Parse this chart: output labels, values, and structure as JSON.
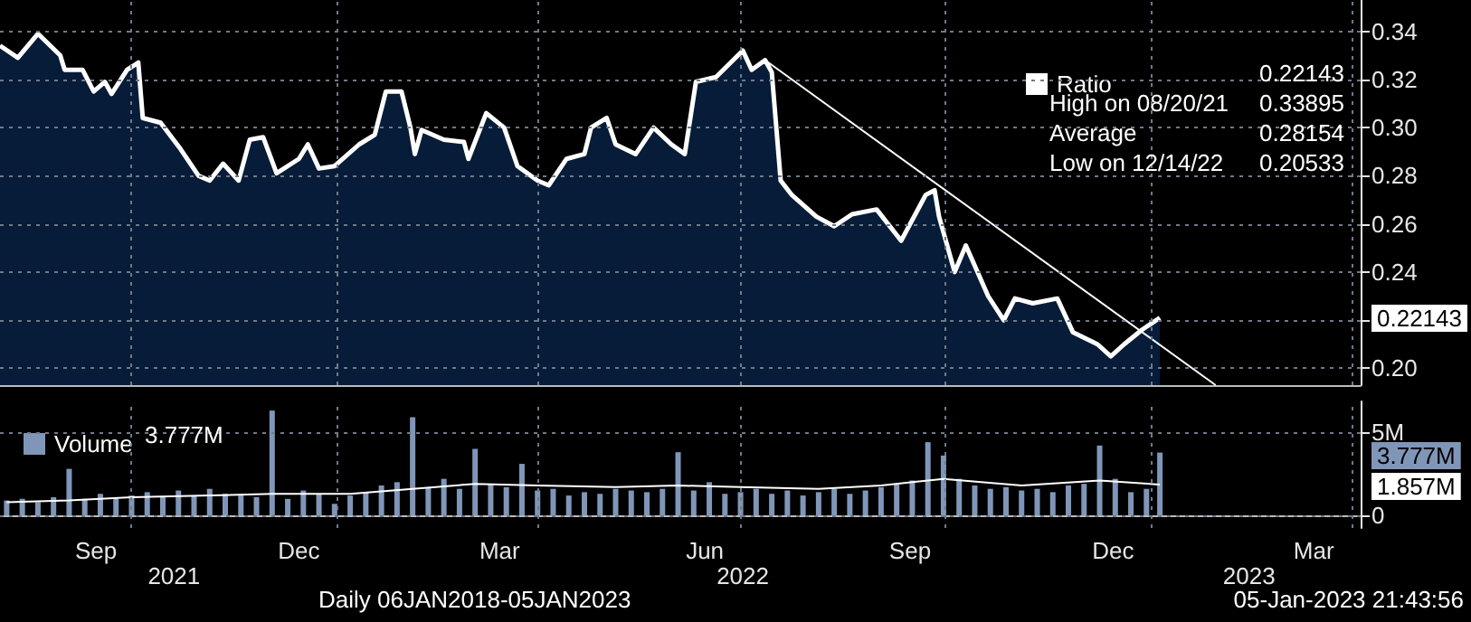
{
  "chart_data": [
    {
      "type": "area",
      "tick_labels": "y",
      "grid": true,
      "legend": "top right",
      "xlim": [
        "2021-08-03",
        "2023-04-05"
      ],
      "xticks": [
        {
          "value": "2021-10-01",
          "label": null
        },
        {
          "value": "2022-01-01",
          "label": null
        },
        {
          "value": "2022-04-01",
          "label": null
        },
        {
          "value": "2022-07-01",
          "label": null
        },
        {
          "value": "2022-10-01",
          "label": null
        },
        {
          "value": "2023-01-01",
          "label": null
        },
        {
          "value": "2023-04-01",
          "label": null
        }
      ],
      "ylim": [
        0.193,
        0.353
      ],
      "yticks": [
        {
          "value": 0.2,
          "label": "0.20"
        },
        {
          "value": 0.22,
          "label": null
        },
        0.24,
        0.26,
        0.28,
        {
          "value": 0.3,
          "label": "0.30"
        },
        0.32,
        0.34
      ],
      "series": [
        {
          "name": "Ratio",
          "color": "#ffffff",
          "x": [
            "2021-08-03",
            "2021-08-11",
            "2021-08-20",
            "2021-08-30",
            "2021-09-01",
            "2021-09-09",
            "2021-09-14",
            "2021-09-19",
            "2021-09-22",
            "2021-09-29",
            "2021-10-04",
            "2021-10-06",
            "2021-10-14",
            "2021-10-23",
            "2021-10-31",
            "2021-11-05",
            "2021-11-11",
            "2021-11-18",
            "2021-11-23",
            "2021-11-29",
            "2021-12-05",
            "2021-12-15",
            "2021-12-19",
            "2021-12-24",
            "2021-12-31",
            "2022-01-11",
            "2022-01-18",
            "2022-01-23",
            "2022-01-30",
            "2022-02-03",
            "2022-02-05",
            "2022-02-08",
            "2022-02-18",
            "2022-02-27",
            "2022-03-01",
            "2022-03-09",
            "2022-03-17",
            "2022-03-23",
            "2022-04-01",
            "2022-04-06",
            "2022-04-14",
            "2022-04-22",
            "2022-04-25",
            "2022-05-02",
            "2022-05-06",
            "2022-05-15",
            "2022-05-23",
            "2022-05-31",
            "2022-06-06",
            "2022-06-11",
            "2022-06-20",
            "2022-07-02",
            "2022-07-06",
            "2022-07-12",
            "2022-07-15",
            "2022-07-19",
            "2022-07-24",
            "2022-08-04",
            "2022-08-12",
            "2022-08-20",
            "2022-08-31",
            "2022-09-11",
            "2022-09-22",
            "2022-09-26",
            "2022-09-28",
            "2022-10-05",
            "2022-10-10",
            "2022-10-20",
            "2022-10-27",
            "2022-11-01",
            "2022-11-09",
            "2022-11-20",
            "2022-11-27",
            "2022-12-08",
            "2022-12-14",
            "2022-12-20",
            "2022-12-28",
            "2023-01-05"
          ],
          "values": [
            0.334,
            0.329,
            0.339,
            0.33,
            0.324,
            0.324,
            0.315,
            0.319,
            0.314,
            0.324,
            0.327,
            0.304,
            0.302,
            0.291,
            0.28,
            0.278,
            0.285,
            0.278,
            0.295,
            0.296,
            0.281,
            0.287,
            0.293,
            0.283,
            0.284,
            0.293,
            0.297,
            0.315,
            0.315,
            0.3,
            0.289,
            0.299,
            0.295,
            0.294,
            0.287,
            0.306,
            0.3,
            0.284,
            0.278,
            0.276,
            0.287,
            0.289,
            0.3,
            0.304,
            0.293,
            0.289,
            0.3,
            0.293,
            0.289,
            0.319,
            0.321,
            0.332,
            0.324,
            0.328,
            0.323,
            0.278,
            0.272,
            0.263,
            0.259,
            0.264,
            0.266,
            0.253,
            0.272,
            0.274,
            0.263,
            0.24,
            0.251,
            0.23,
            0.22,
            0.229,
            0.227,
            0.229,
            0.215,
            0.21,
            0.205,
            0.21,
            0.216,
            0.221
          ]
        },
        {
          "type": "line",
          "color": "#ffffff",
          "x": [
            "2022-07-12",
            "2023-01-30"
          ],
          "values": [
            0.328,
            0.193
          ]
        }
      ],
      "annotations": [
        "0.22143",
        "High on 08/20/21",
        "0.33895",
        "Average",
        "0.28154",
        "Low on 12/14/22",
        "0.20533",
        "0.22143"
      ]
    },
    {
      "type": "bar",
      "grid": true,
      "legend": "top left",
      "xlim": [
        "2021-08-03",
        "2023-04-05"
      ],
      "xticks": [
        {
          "value": "2021-09-15",
          "label": "Sep"
        },
        {
          "value": "2021-10-01",
          "label": null
        },
        {
          "value": "2021-12-15",
          "label": "Dec"
        },
        {
          "value": "2022-01-01",
          "label": null
        },
        {
          "value": "2022-03-15",
          "label": "Mar"
        },
        {
          "value": "2022-04-01",
          "label": null
        },
        {
          "value": "2022-06-15",
          "label": "Jun"
        },
        {
          "value": "2022-07-01",
          "label": null
        },
        {
          "value": "2022-09-15",
          "label": "Sep"
        },
        {
          "value": "2022-10-01",
          "label": null
        },
        {
          "value": "2022-12-15",
          "label": "Dec"
        },
        {
          "value": "2023-01-01",
          "label": null
        },
        {
          "value": "2023-03-15",
          "label": "Mar"
        },
        {
          "value": "2023-04-01",
          "label": null
        }
      ],
      "x2lim": [
        "2021-08-03",
        "2023-04-05"
      ],
      "x2ticks": [
        {
          "value": "2021-10-20",
          "label": "2021"
        },
        {
          "value": "2022-07-02",
          "label": "2022"
        },
        {
          "value": "2023-02-14",
          "label": "2023"
        }
      ],
      "ylim": [
        -0.75,
        6.85
      ],
      "yticks": [
        0,
        {
          "value": 5,
          "label": "5M"
        }
      ],
      "series": [
        {
          "name": "Volume",
          "color": "#8096b8",
          "x": [
            "2021-08-06",
            "2021-08-13",
            "2021-08-20",
            "2021-08-27",
            "2021-09-03",
            "2021-09-10",
            "2021-09-17",
            "2021-09-24",
            "2021-10-01",
            "2021-10-08",
            "2021-10-15",
            "2021-10-22",
            "2021-10-29",
            "2021-11-05",
            "2021-11-12",
            "2021-11-19",
            "2021-11-26",
            "2021-12-03",
            "2021-12-10",
            "2021-12-17",
            "2021-12-24",
            "2021-12-31",
            "2022-01-07",
            "2022-01-14",
            "2022-01-21",
            "2022-01-28",
            "2022-02-04",
            "2022-02-11",
            "2022-02-18",
            "2022-02-25",
            "2022-03-04",
            "2022-03-11",
            "2022-03-18",
            "2022-03-25",
            "2022-04-01",
            "2022-04-08",
            "2022-04-15",
            "2022-04-22",
            "2022-04-29",
            "2022-05-06",
            "2022-05-13",
            "2022-05-20",
            "2022-05-27",
            "2022-06-03",
            "2022-06-10",
            "2022-06-17",
            "2022-06-24",
            "2022-07-01",
            "2022-07-08",
            "2022-07-15",
            "2022-07-22",
            "2022-07-29",
            "2022-08-05",
            "2022-08-12",
            "2022-08-19",
            "2022-08-26",
            "2022-09-02",
            "2022-09-09",
            "2022-09-16",
            "2022-09-23",
            "2022-09-30",
            "2022-10-07",
            "2022-10-14",
            "2022-10-21",
            "2022-10-28",
            "2022-11-04",
            "2022-11-11",
            "2022-11-18",
            "2022-11-25",
            "2022-12-02",
            "2022-12-09",
            "2022-12-16",
            "2022-12-23",
            "2022-12-30",
            "2023-01-05"
          ],
          "values": [
            0.9,
            1.0,
            0.8,
            1.1,
            2.8,
            1.0,
            1.3,
            1.1,
            1.2,
            1.4,
            1.1,
            1.5,
            1.2,
            1.6,
            1.3,
            1.2,
            1.1,
            6.3,
            1.0,
            1.5,
            1.3,
            0.7,
            1.2,
            1.4,
            1.8,
            2.0,
            5.9,
            1.7,
            2.2,
            1.6,
            4.0,
            1.9,
            1.7,
            3.1,
            1.5,
            1.6,
            1.2,
            1.4,
            1.3,
            1.6,
            1.5,
            1.4,
            1.6,
            3.8,
            1.5,
            2.0,
            1.3,
            1.4,
            1.6,
            1.3,
            1.5,
            1.2,
            1.4,
            1.6,
            1.3,
            1.5,
            1.7,
            1.9,
            2.1,
            4.4,
            3.6,
            2.2,
            1.8,
            1.6,
            1.7,
            1.5,
            1.6,
            1.4,
            1.8,
            1.9,
            4.2,
            2.2,
            1.4,
            1.6,
            3.777
          ]
        },
        {
          "type": "line",
          "color": "#ffffff",
          "x": [
            "2021-08-06",
            "2021-09-03",
            "2021-10-01",
            "2021-11-05",
            "2021-12-03",
            "2022-01-07",
            "2022-02-04",
            "2022-03-04",
            "2022-04-01",
            "2022-05-06",
            "2022-06-03",
            "2022-07-01",
            "2022-08-05",
            "2022-09-02",
            "2022-09-30",
            "2022-11-04",
            "2022-12-09",
            "2023-01-05"
          ],
          "values": [
            0.8,
            0.9,
            1.1,
            1.2,
            1.3,
            1.3,
            1.6,
            1.9,
            1.8,
            1.7,
            1.8,
            1.7,
            1.6,
            1.8,
            2.2,
            1.8,
            2.1,
            1.857
          ]
        }
      ],
      "annotations": [
        "3.777M",
        "3.777M",
        "1.857M",
        "Daily 06JAN2018-05JAN2023",
        "05-Jan-2023 21:43:56"
      ]
    }
  ]
}
